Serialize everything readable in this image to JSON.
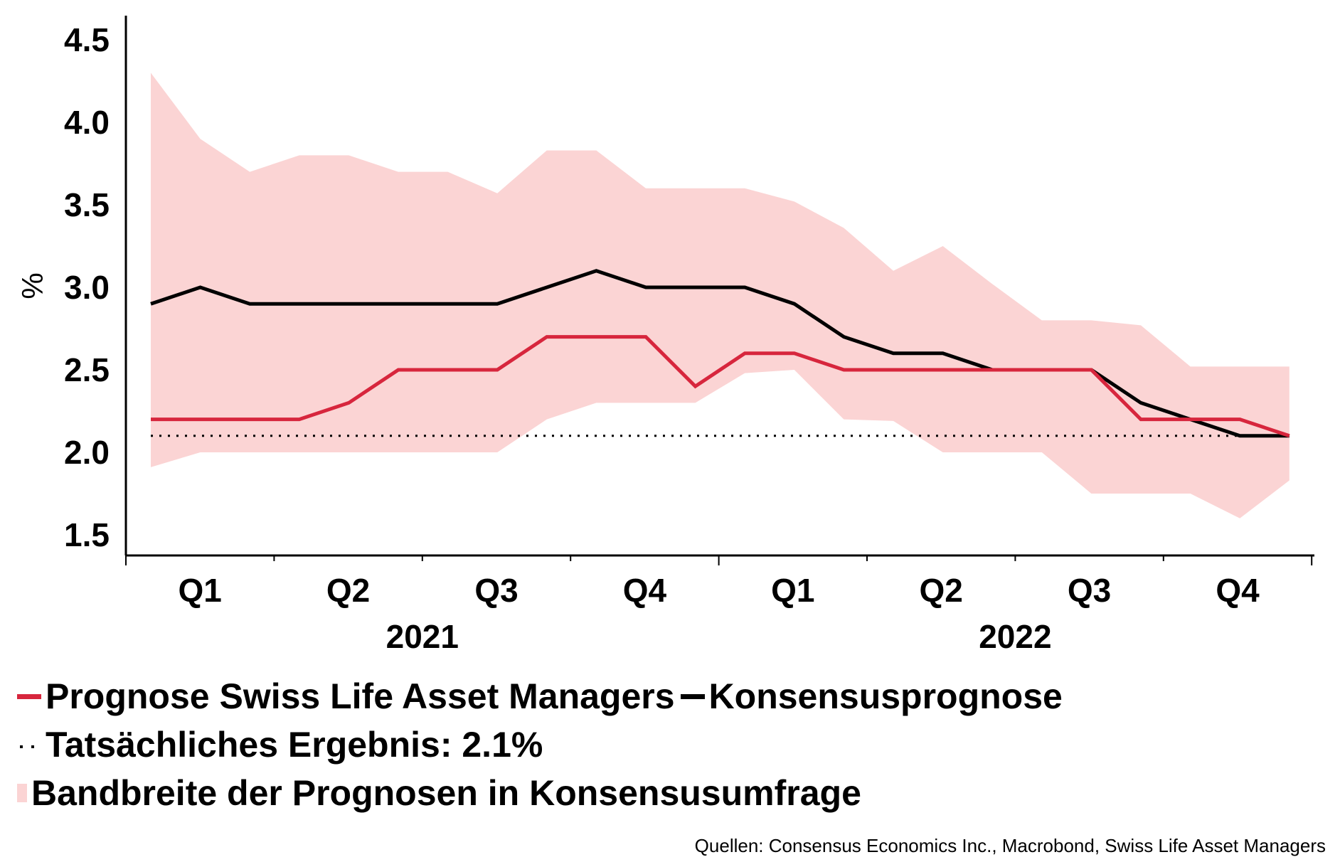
{
  "chart_data": {
    "type": "line",
    "ylabel": "%",
    "ylim": [
      1.5,
      4.5
    ],
    "yticks": [
      "1.5",
      "2.0",
      "2.5",
      "3.0",
      "3.5",
      "4.0",
      "4.5"
    ],
    "quarters": [
      "Q1",
      "Q2",
      "Q3",
      "Q4",
      "Q1",
      "Q2",
      "Q3",
      "Q4"
    ],
    "years": [
      "2021",
      "2022"
    ],
    "x_index": [
      0,
      1,
      2,
      3,
      4,
      5,
      6,
      7,
      8,
      9,
      10,
      11,
      12,
      13,
      14,
      15,
      16,
      17,
      18,
      19,
      20,
      21,
      22,
      23
    ],
    "series": [
      {
        "name": "Prognose Swiss Life Asset Managers",
        "color": "#d7263d",
        "values": [
          2.2,
          2.2,
          2.2,
          2.2,
          2.3,
          2.5,
          2.5,
          2.5,
          2.7,
          2.7,
          2.7,
          2.4,
          2.6,
          2.6,
          2.5,
          2.5,
          2.5,
          2.5,
          2.5,
          2.5,
          2.2,
          2.2,
          2.2,
          2.1
        ]
      },
      {
        "name": "Konsensusprognose",
        "color": "#000000",
        "values": [
          2.9,
          3.0,
          2.9,
          2.9,
          2.9,
          2.9,
          2.9,
          2.9,
          3.0,
          3.1,
          3.0,
          3.0,
          3.0,
          2.9,
          2.7,
          2.6,
          2.6,
          2.5,
          2.5,
          2.5,
          2.3,
          2.2,
          2.1,
          2.1
        ]
      }
    ],
    "band": {
      "name": "Bandbreite der Prognosen in Konsensusumfrage",
      "color": "#fbd4d4",
      "upper": [
        4.3,
        3.9,
        3.7,
        3.8,
        3.8,
        3.7,
        3.7,
        3.57,
        3.83,
        3.83,
        3.6,
        3.6,
        3.6,
        3.52,
        3.36,
        3.1,
        3.25,
        3.02,
        2.8,
        2.8,
        2.77,
        2.52,
        2.52,
        2.52
      ],
      "lower": [
        1.91,
        2.0,
        2.0,
        2.0,
        2.0,
        2.0,
        2.0,
        2.0,
        2.2,
        2.3,
        2.3,
        2.3,
        2.48,
        2.5,
        2.2,
        2.19,
        2.0,
        2.0,
        2.0,
        1.75,
        1.75,
        1.75,
        1.6,
        1.83
      ]
    },
    "actual": {
      "name": "Tatsächliches Ergebnis",
      "value": 2.1,
      "color": "#000000"
    }
  },
  "legend": {
    "swiss_life": "Prognose Swiss Life Asset Managers",
    "consensus": "Konsensusprognose",
    "actual": "Tatsächliches Ergebnis: 2.1%",
    "band": "Bandbreite der Prognosen in Konsensusumfrage"
  },
  "source": "Quellen: Consensus Economics Inc., Macrobond, Swiss Life Asset Managers"
}
